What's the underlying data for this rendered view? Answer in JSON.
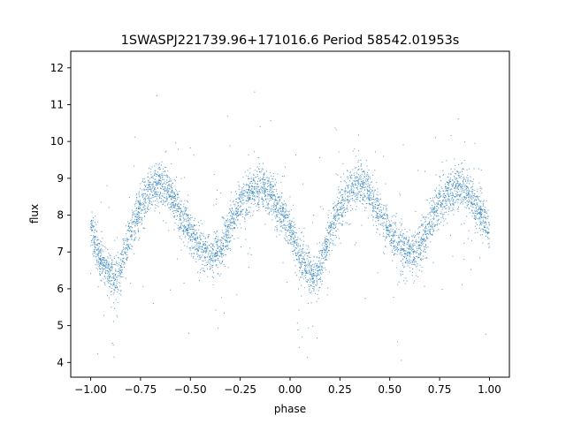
{
  "chart_data": {
    "type": "scatter",
    "title": "1SWASPJ221739.96+171016.6 Period 58542.01953s",
    "xlabel": "phase",
    "ylabel": "flux",
    "xlim": [
      -1.1,
      1.1
    ],
    "ylim": [
      3.6,
      12.45
    ],
    "xticks": [
      -1.0,
      -0.75,
      -0.5,
      -0.25,
      0.0,
      0.25,
      0.5,
      0.75,
      1.0
    ],
    "xtick_labels": [
      "−1.00",
      "−0.75",
      "−0.50",
      "−0.25",
      "0.00",
      "0.25",
      "0.50",
      "0.75",
      "1.00"
    ],
    "yticks": [
      4,
      5,
      6,
      7,
      8,
      9,
      10,
      11,
      12
    ],
    "ytick_labels": [
      "4",
      "5",
      "6",
      "7",
      "8",
      "9",
      "10",
      "11",
      "12"
    ],
    "grid": false,
    "marker_color": "#1f77b4",
    "series": [
      {
        "x": [
          -1.0,
          -0.95,
          -0.9,
          -0.875,
          -0.85,
          -0.8,
          -0.75,
          -0.7,
          -0.65,
          -0.6,
          -0.55,
          -0.5,
          -0.45,
          -0.4,
          -0.35,
          -0.3,
          -0.25,
          -0.2,
          -0.15,
          -0.1,
          -0.05,
          0.0,
          0.05,
          0.1,
          0.125,
          0.15,
          0.2,
          0.25,
          0.3,
          0.35,
          0.4,
          0.45,
          0.5,
          0.55,
          0.6,
          0.65,
          0.7,
          0.75,
          0.8,
          0.85,
          0.9,
          0.95,
          1.0
        ],
        "y": [
          7.6,
          6.8,
          6.4,
          6.3,
          6.5,
          7.5,
          8.3,
          8.7,
          8.9,
          8.6,
          8.0,
          7.5,
          7.1,
          6.9,
          7.1,
          7.7,
          8.3,
          8.6,
          8.8,
          8.6,
          8.1,
          7.6,
          6.8,
          6.4,
          6.3,
          6.5,
          7.5,
          8.3,
          8.7,
          8.9,
          8.6,
          8.0,
          7.5,
          7.1,
          6.9,
          7.1,
          7.7,
          8.3,
          8.6,
          8.8,
          8.6,
          8.1,
          7.6
        ]
      }
    ]
  }
}
